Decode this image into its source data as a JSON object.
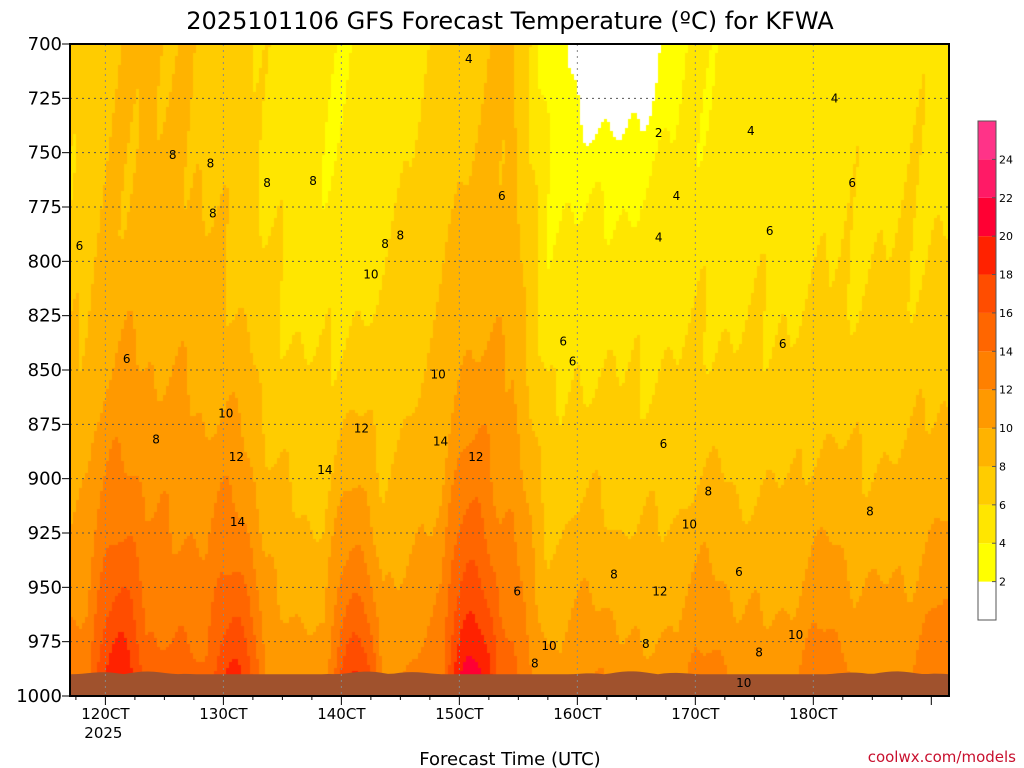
{
  "chart_data": {
    "type": "heatmap",
    "title": "2025101106 GFS Forecast Temperature (ºC) for KFWA",
    "xlabel": "Forecast Time (UTC)",
    "ylabel": "",
    "x_ticks": [
      {
        "label": "120CT",
        "sublabel": "2025",
        "time_index": 1.0
      },
      {
        "label": "130CT",
        "sublabel": "",
        "time_index": 2.0
      },
      {
        "label": "140CT",
        "sublabel": "",
        "time_index": 3.0
      },
      {
        "label": "150CT",
        "sublabel": "",
        "time_index": 4.0
      },
      {
        "label": "160CT",
        "sublabel": "",
        "time_index": 5.0
      },
      {
        "label": "170CT",
        "sublabel": "",
        "time_index": 6.0
      },
      {
        "label": "180CT",
        "sublabel": "",
        "time_index": 7.0
      }
    ],
    "x_range_days": [
      0.7,
      8.15
    ],
    "y_ticks": [
      "700",
      "725",
      "750",
      "775",
      "800",
      "825",
      "850",
      "875",
      "900",
      "925",
      "950",
      "975",
      "1000"
    ],
    "y_range_hpa": [
      1000,
      700
    ],
    "y_reversed": true,
    "grid": true,
    "colorbar": {
      "levels": [
        2,
        4,
        6,
        8,
        10,
        12,
        14,
        16,
        18,
        20,
        22,
        24
      ],
      "colors": [
        "#ffffff",
        "#ffff00",
        "#ffe600",
        "#ffcc00",
        "#ffb300",
        "#ff9900",
        "#ff8000",
        "#ff6600",
        "#ff4d00",
        "#ff2200",
        "#ff0033",
        "#ff1a66",
        "#ff3388"
      ],
      "label_values": [
        "2",
        "4",
        "6",
        "8",
        "10",
        "12",
        "14",
        "16",
        "18",
        "20",
        "22",
        "24"
      ],
      "placement": "right"
    },
    "ground_color": "#a0522d",
    "surface_pressure_hpa": 990,
    "contour_interval": 2,
    "contour_labels": [
      {
        "text": "4",
        "t": 4.08,
        "p": 707
      },
      {
        "text": "2",
        "t": 5.69,
        "p": 741
      },
      {
        "text": "4",
        "t": 6.47,
        "p": 740
      },
      {
        "text": "4",
        "t": 7.18,
        "p": 725
      },
      {
        "text": "4",
        "t": 5.84,
        "p": 770
      },
      {
        "text": "4",
        "t": 5.69,
        "p": 789
      },
      {
        "text": "6",
        "t": 4.36,
        "p": 770
      },
      {
        "text": "6",
        "t": 7.33,
        "p": 764
      },
      {
        "text": "6",
        "t": 6.63,
        "p": 786
      },
      {
        "text": "6",
        "t": 0.78,
        "p": 793
      },
      {
        "text": "6",
        "t": 1.18,
        "p": 845
      },
      {
        "text": "6",
        "t": 4.88,
        "p": 837
      },
      {
        "text": "6",
        "t": 4.96,
        "p": 846
      },
      {
        "text": "6",
        "t": 6.74,
        "p": 838
      },
      {
        "text": "6",
        "t": 5.73,
        "p": 884
      },
      {
        "text": "6",
        "t": 4.49,
        "p": 952
      },
      {
        "text": "6",
        "t": 6.37,
        "p": 943
      },
      {
        "text": "8",
        "t": 1.57,
        "p": 751
      },
      {
        "text": "8",
        "t": 1.89,
        "p": 755
      },
      {
        "text": "8",
        "t": 2.37,
        "p": 764
      },
      {
        "text": "8",
        "t": 2.76,
        "p": 763
      },
      {
        "text": "8",
        "t": 1.91,
        "p": 778
      },
      {
        "text": "8",
        "t": 3.37,
        "p": 792
      },
      {
        "text": "8",
        "t": 3.5,
        "p": 788
      },
      {
        "text": "8",
        "t": 1.43,
        "p": 882
      },
      {
        "text": "8",
        "t": 6.11,
        "p": 906
      },
      {
        "text": "8",
        "t": 7.48,
        "p": 915
      },
      {
        "text": "8",
        "t": 5.31,
        "p": 944
      },
      {
        "text": "8",
        "t": 5.58,
        "p": 976
      },
      {
        "text": "8",
        "t": 6.54,
        "p": 980
      },
      {
        "text": "8",
        "t": 4.64,
        "p": 985
      },
      {
        "text": "10",
        "t": 3.25,
        "p": 806
      },
      {
        "text": "10",
        "t": 3.82,
        "p": 852
      },
      {
        "text": "10",
        "t": 2.02,
        "p": 870
      },
      {
        "text": "10",
        "t": 5.95,
        "p": 921
      },
      {
        "text": "10",
        "t": 4.76,
        "p": 977
      },
      {
        "text": "10",
        "t": 6.85,
        "p": 972
      },
      {
        "text": "10",
        "t": 6.41,
        "p": 994
      },
      {
        "text": "12",
        "t": 3.17,
        "p": 877
      },
      {
        "text": "12",
        "t": 2.11,
        "p": 890
      },
      {
        "text": "12",
        "t": 4.14,
        "p": 890
      },
      {
        "text": "12",
        "t": 5.7,
        "p": 952
      },
      {
        "text": "14",
        "t": 2.86,
        "p": 896
      },
      {
        "text": "14",
        "t": 3.84,
        "p": 883
      },
      {
        "text": "14",
        "t": 2.12,
        "p": 920
      }
    ],
    "credit": "coolwx.com/models"
  }
}
